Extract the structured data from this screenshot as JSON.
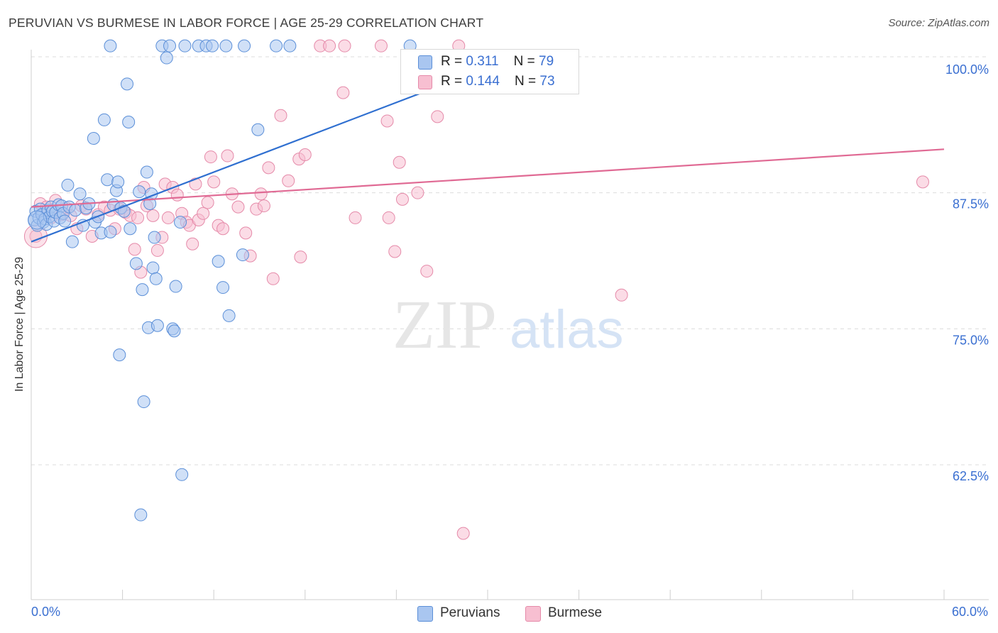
{
  "header": {
    "title": "PERUVIAN VS BURMESE IN LABOR FORCE | AGE 25-29 CORRELATION CHART",
    "source": "Source: ZipAtlas.com"
  },
  "watermark": {
    "zip": "ZIP",
    "atlas": "atlas"
  },
  "legend_top": {
    "rows": [
      {
        "r_label": "R = ",
        "r_value": "0.311",
        "n_label": "N = ",
        "n_value": "79"
      },
      {
        "r_label": "R = ",
        "r_value": "0.144",
        "n_label": "N = ",
        "n_value": "73"
      }
    ]
  },
  "legend_bottom": {
    "items": [
      "Peruvians",
      "Burmese"
    ]
  },
  "colors": {
    "peruvian_fill": "#a9c6f0",
    "peruvian_stroke": "#5b8fd8",
    "peruvian_line": "#2f6fd0",
    "burmese_fill": "#f7bfd1",
    "burmese_stroke": "#e58aa9",
    "burmese_line": "#e06a94",
    "tick_text": "#3a6fd1",
    "grid": "#dcdcdc"
  },
  "chart_data": {
    "type": "scatter",
    "title": "PERUVIAN VS BURMESE IN LABOR FORCE | AGE 25-29 CORRELATION CHART",
    "xlabel": "",
    "ylabel": "In Labor Force | Age 25-29",
    "xlim": [
      0,
      60
    ],
    "ylim": [
      52,
      101
    ],
    "x_tick_labels": [
      "0.0%",
      "60.0%"
    ],
    "y_ticks": [
      62.5,
      75.0,
      87.5,
      100.0
    ],
    "y_tick_labels": [
      "62.5%",
      "75.0%",
      "87.5%",
      "100.0%"
    ],
    "grid": "horizontal dashed",
    "series": [
      {
        "name": "Peruvians",
        "R": 0.311,
        "N": 79,
        "trend": {
          "x": [
            0,
            30
          ],
          "y": [
            83.0,
            99.0
          ]
        },
        "points": [
          [
            0.2,
            85
          ],
          [
            0.3,
            85.8
          ],
          [
            0.4,
            84.5
          ],
          [
            0.5,
            85.2
          ],
          [
            0.6,
            86
          ],
          [
            0.7,
            85.5
          ],
          [
            0.8,
            84.8
          ],
          [
            0.9,
            85.1
          ],
          [
            1.0,
            84.6
          ],
          [
            1.1,
            85.9
          ],
          [
            1.2,
            85.3
          ],
          [
            1.3,
            86.2
          ],
          [
            1.4,
            85.8
          ],
          [
            1.5,
            84.9
          ],
          [
            1.6,
            85.7
          ],
          [
            1.8,
            86.4
          ],
          [
            1.9,
            85.2
          ],
          [
            2.0,
            86.3
          ],
          [
            2.1,
            85.6
          ],
          [
            2.2,
            84.9
          ],
          [
            2.4,
            88.2
          ],
          [
            2.5,
            86.2
          ],
          [
            2.7,
            83
          ],
          [
            2.9,
            85.9
          ],
          [
            3.2,
            87.4
          ],
          [
            3.4,
            84.5
          ],
          [
            3.6,
            86.1
          ],
          [
            3.8,
            86.5
          ],
          [
            4.1,
            92.5
          ],
          [
            4.2,
            84.8
          ],
          [
            4.4,
            85.3
          ],
          [
            4.6,
            83.8
          ],
          [
            4.8,
            94.2
          ],
          [
            5.0,
            88.7
          ],
          [
            5.2,
            83.9
          ],
          [
            5.4,
            86.4
          ],
          [
            5.6,
            87.7
          ],
          [
            5.7,
            88.5
          ],
          [
            5.9,
            86.1
          ],
          [
            6.1,
            85.8
          ],
          [
            6.3,
            97.5
          ],
          [
            6.4,
            94
          ],
          [
            6.5,
            84.2
          ],
          [
            6.9,
            81
          ],
          [
            7.1,
            87.6
          ],
          [
            7.3,
            78.6
          ],
          [
            7.4,
            68.3
          ],
          [
            7.6,
            89.4
          ],
          [
            7.7,
            75.1
          ],
          [
            7.8,
            86.5
          ],
          [
            7.9,
            87.4
          ],
          [
            8.0,
            80.6
          ],
          [
            8.1,
            83.4
          ],
          [
            8.2,
            79.6
          ],
          [
            8.3,
            75.3
          ],
          [
            8.6,
            101
          ],
          [
            8.9,
            99.9
          ],
          [
            9.1,
            101
          ],
          [
            9.3,
            75
          ],
          [
            9.4,
            74.8
          ],
          [
            9.5,
            78.9
          ],
          [
            9.8,
            84.8
          ],
          [
            9.9,
            61.6
          ],
          [
            10.1,
            101
          ],
          [
            11.0,
            101
          ],
          [
            11.5,
            101
          ],
          [
            11.9,
            101
          ],
          [
            12.3,
            81.2
          ],
          [
            12.6,
            78.8
          ],
          [
            12.8,
            101
          ],
          [
            13.0,
            76.2
          ],
          [
            13.9,
            81.8
          ],
          [
            14.0,
            101
          ],
          [
            14.9,
            93.3
          ],
          [
            16.1,
            101
          ],
          [
            17.0,
            101
          ],
          [
            5.2,
            101
          ],
          [
            5.8,
            72.6
          ],
          [
            7.2,
            57.9
          ],
          [
            24.9,
            101
          ]
        ]
      },
      {
        "name": "Burmese",
        "R": 0.144,
        "N": 73,
        "trend": {
          "x": [
            0,
            60
          ],
          "y": [
            86.2,
            91.5
          ]
        },
        "points": [
          [
            0.3,
            83.5
          ],
          [
            0.6,
            86.5
          ],
          [
            1.0,
            86.2
          ],
          [
            1.3,
            85.2
          ],
          [
            1.6,
            86.8
          ],
          [
            2.0,
            85.5
          ],
          [
            2.3,
            86.1
          ],
          [
            2.6,
            85.4
          ],
          [
            3.0,
            84.2
          ],
          [
            3.3,
            86.3
          ],
          [
            3.6,
            86
          ],
          [
            4.0,
            83.5
          ],
          [
            4.4,
            85.5
          ],
          [
            4.8,
            86.2
          ],
          [
            5.2,
            85.9
          ],
          [
            5.5,
            84.2
          ],
          [
            5.8,
            86
          ],
          [
            6.2,
            85.7
          ],
          [
            6.5,
            85.4
          ],
          [
            6.8,
            82.3
          ],
          [
            7.0,
            85.2
          ],
          [
            7.2,
            80.2
          ],
          [
            7.4,
            88
          ],
          [
            7.6,
            86.3
          ],
          [
            8.0,
            85.4
          ],
          [
            8.3,
            82.2
          ],
          [
            8.6,
            83.4
          ],
          [
            8.8,
            88.3
          ],
          [
            9.0,
            85.2
          ],
          [
            9.3,
            88
          ],
          [
            9.6,
            87.3
          ],
          [
            9.9,
            85.6
          ],
          [
            10.2,
            84.8
          ],
          [
            10.4,
            84.5
          ],
          [
            10.6,
            82.8
          ],
          [
            10.8,
            88.3
          ],
          [
            11.0,
            85
          ],
          [
            11.3,
            85.6
          ],
          [
            11.6,
            86.6
          ],
          [
            11.8,
            90.8
          ],
          [
            12.0,
            88.5
          ],
          [
            12.3,
            84.5
          ],
          [
            12.6,
            84.2
          ],
          [
            12.9,
            90.9
          ],
          [
            13.2,
            87.4
          ],
          [
            13.6,
            86.2
          ],
          [
            14.1,
            83.8
          ],
          [
            14.4,
            81.7
          ],
          [
            14.8,
            86
          ],
          [
            15.1,
            87.4
          ],
          [
            15.3,
            86.3
          ],
          [
            15.6,
            89.8
          ],
          [
            15.9,
            79.6
          ],
          [
            16.4,
            94.6
          ],
          [
            16.9,
            88.6
          ],
          [
            17.6,
            90.6
          ],
          [
            18.0,
            91
          ],
          [
            17.7,
            81.6
          ],
          [
            19.0,
            101
          ],
          [
            19.6,
            101
          ],
          [
            20.6,
            101
          ],
          [
            20.5,
            96.7
          ],
          [
            21.3,
            85.2
          ],
          [
            23.0,
            101
          ],
          [
            23.4,
            94.1
          ],
          [
            23.5,
            85.2
          ],
          [
            23.9,
            82.1
          ],
          [
            24.2,
            90.3
          ],
          [
            24.4,
            86.9
          ],
          [
            25.4,
            87.5
          ],
          [
            26.0,
            80.3
          ],
          [
            26.7,
            94.5
          ],
          [
            28.1,
            101
          ],
          [
            28.4,
            56.2
          ],
          [
            38.8,
            78.1
          ],
          [
            58.6,
            88.5
          ]
        ]
      }
    ]
  }
}
